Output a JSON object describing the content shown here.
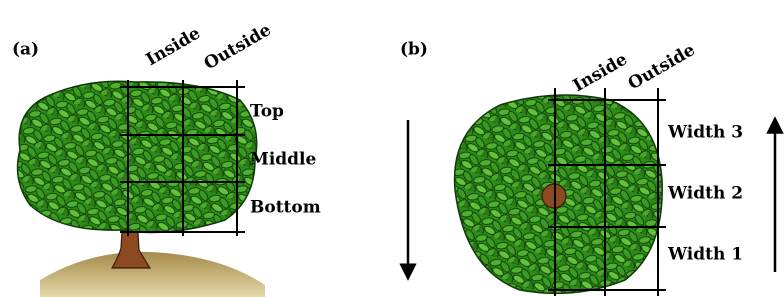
{
  "panels": [
    {
      "label": "(a)",
      "columns": [
        "Inside",
        "Outside"
      ],
      "rows": [
        "Top",
        "Middle",
        "Bottom"
      ]
    },
    {
      "label": "(b)",
      "columns": [
        "Inside",
        "Outside"
      ],
      "rows": [
        "Width 3",
        "Width 2",
        "Width 1"
      ]
    }
  ]
}
